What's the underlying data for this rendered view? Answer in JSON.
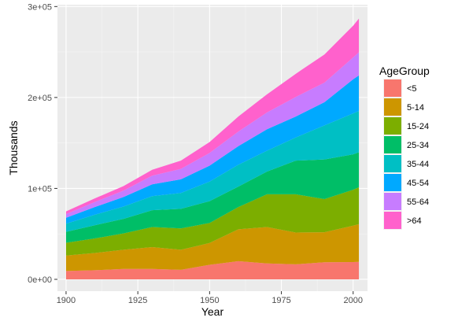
{
  "chart_data": {
    "type": "area",
    "stacked": true,
    "xlabel": "Year",
    "ylabel": "Thousands",
    "xlim": [
      1897,
      2005
    ],
    "ylim": [
      -13000,
      302000
    ],
    "x_ticks": [
      1900,
      1925,
      1950,
      1975,
      2000
    ],
    "x_tick_labels": [
      "1900",
      "1925",
      "1950",
      "1975",
      "2000"
    ],
    "y_ticks": [
      0,
      100000,
      200000,
      300000
    ],
    "y_tick_labels": [
      "0e+00",
      "1e+05",
      "2e+05",
      "3e+05"
    ],
    "grid": true,
    "legend": {
      "title": "AgeGroup",
      "position": "right"
    },
    "x": [
      1900,
      1910,
      1920,
      1930,
      1940,
      1950,
      1960,
      1970,
      1980,
      1990,
      2000,
      2002
    ],
    "series": [
      {
        "name": "<5",
        "color": "#F8766D",
        "values": [
          9200,
          10000,
          11500,
          11500,
          10500,
          16000,
          20000,
          17500,
          16500,
          18800,
          19000,
          19200
        ]
      },
      {
        "name": "5-14",
        "color": "#CD9600",
        "values": [
          17000,
          19000,
          21000,
          24000,
          22000,
          24000,
          35000,
          40000,
          35000,
          33000,
          40000,
          41500
        ]
      },
      {
        "name": "15-24",
        "color": "#7CAE00",
        "values": [
          14000,
          16000,
          18000,
          22000,
          23500,
          22000,
          24500,
          36000,
          42000,
          36500,
          39500,
          40500
        ]
      },
      {
        "name": "25-34",
        "color": "#00BE67",
        "values": [
          12000,
          14500,
          16000,
          18500,
          21500,
          24000,
          22500,
          25000,
          37000,
          43500,
          39000,
          38500
        ]
      },
      {
        "name": "35-44",
        "color": "#00BFC4",
        "values": [
          9000,
          11500,
          13500,
          15500,
          17500,
          21500,
          24000,
          23000,
          25500,
          37500,
          45000,
          45500
        ]
      },
      {
        "name": "45-54",
        "color": "#00A9FF",
        "values": [
          6500,
          8500,
          10500,
          13000,
          15000,
          17500,
          20500,
          23500,
          23000,
          25500,
          37500,
          39000
        ]
      },
      {
        "name": "55-64",
        "color": "#C77CFF",
        "values": [
          4000,
          5500,
          7000,
          9500,
          11500,
          14000,
          16000,
          18500,
          21500,
          21500,
          24000,
          25500
        ]
      },
      {
        "name": ">64",
        "color": "#FF61CC",
        "values": [
          3000,
          4000,
          5000,
          6500,
          9000,
          12000,
          16500,
          20000,
          25500,
          31000,
          35000,
          37000
        ]
      }
    ]
  }
}
